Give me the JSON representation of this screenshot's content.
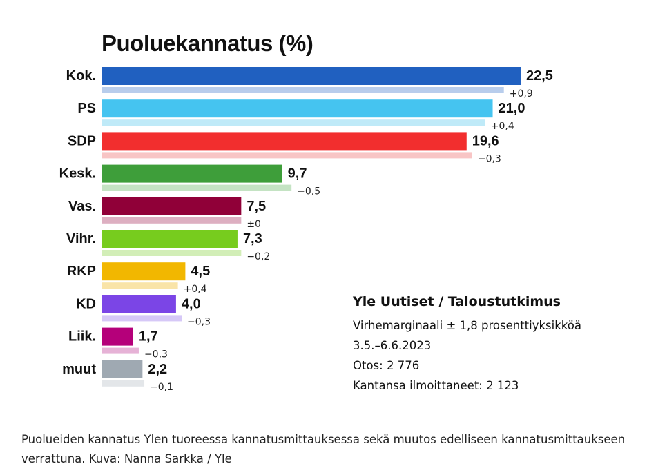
{
  "chart_data": {
    "type": "bar",
    "title": "Puoluekannatus (%)",
    "categories": [
      "Kok.",
      "PS",
      "SDP",
      "Kesk.",
      "Vas.",
      "Vihr.",
      "RKP",
      "KD",
      "Liik.",
      "muut"
    ],
    "values": [
      22.5,
      21.0,
      19.6,
      9.7,
      7.5,
      7.3,
      4.5,
      4.0,
      1.7,
      2.2
    ],
    "value_labels": [
      "22,5",
      "21,0",
      "19,6",
      "9,7",
      "7,5",
      "7,3",
      "4,5",
      "4,0",
      "1,7",
      "2,2"
    ],
    "changes": [
      0.9,
      0.4,
      -0.3,
      -0.5,
      0,
      -0.2,
      0.4,
      -0.3,
      -0.3,
      -0.1
    ],
    "change_labels": [
      "+0,9",
      "+0,4",
      "−0,3",
      "−0,5",
      "±0",
      "−0,2",
      "+0,4",
      "−0,3",
      "−0,3",
      "−0,1"
    ],
    "colors": [
      "#2060C0",
      "#45C4F0",
      "#F22E2E",
      "#3E9E3A",
      "#900038",
      "#77CC1E",
      "#F2B700",
      "#7B45E6",
      "#B5007A",
      "#9FA9B2"
    ],
    "light_colors": [
      "#B8CDEC",
      "#BFEAF8",
      "#F8C5C5",
      "#C4E3C3",
      "#DDAFC1",
      "#D2EEB7",
      "#F9E4A8",
      "#D6C8F7",
      "#E6B2D6",
      "#E3E6E9"
    ],
    "xlabel": "",
    "ylabel": "",
    "xlim": [
      0,
      22.5
    ]
  },
  "source": {
    "title": "Yle Uutiset / Taloustutkimus",
    "lines": [
      "Virhemarginaali ± 1,8 prosenttiyksikköä",
      "3.5.–6.6.2023",
      "Otos: 2 776",
      "Kantansa ilmoittaneet: 2 123"
    ]
  },
  "caption": "Puolueiden kannatus Ylen tuoreessa kannatusmittauksessa sekä muutos edelliseen kannatusmittaukseen verrattuna. Kuva: Nanna Sarkka / Yle"
}
